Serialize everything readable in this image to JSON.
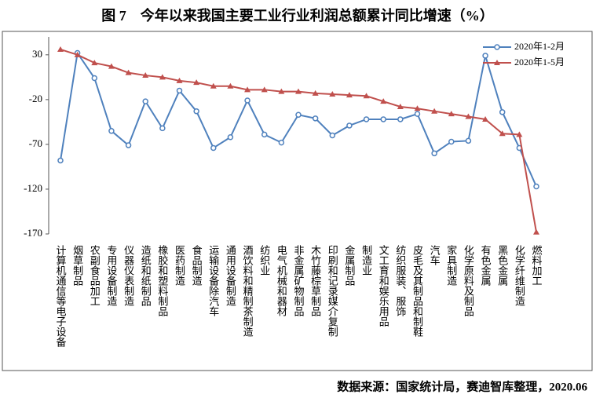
{
  "chart_data": {
    "type": "line",
    "title": "图 7　今年以来我国主要工业行业利润总额累计同比增速（%）",
    "source": "数据来源：国家统计局，赛迪智库整理，2020.06",
    "categories": [
      "计算机通信等电子设备",
      "烟草制品",
      "农副食品加工",
      "专用设备制造",
      "仪器仪表制造",
      "造纸和纸制品",
      "橡胶和塑料制品",
      "医药制造",
      "食品制造",
      "运输设备除汽车",
      "通用设备制造",
      "酒饮料和精制茶制造",
      "纺织业",
      "电气机械和器材",
      "非金属矿物制品",
      "木竹藤棕草制品",
      "印刷和记录媒介复制",
      "金属制品",
      "制造业",
      "文工育和娱乐用品",
      "纺织服装、服饰",
      "皮毛及其制品和制鞋",
      "汽车",
      "家具制造",
      "化学原料及制品",
      "有色金属",
      "黑色金属",
      "化学纤维制造",
      "燃料加工"
    ],
    "series": [
      {
        "name": "2020年1-2月",
        "color": "#4f81bd",
        "marker": "circle",
        "values": [
          -88,
          32,
          4,
          -55,
          -71,
          -22,
          -52,
          -10,
          -33,
          -74,
          -62,
          -21,
          -59,
          -68,
          -37,
          -41,
          -60,
          -49,
          -42,
          -42,
          -42,
          -36,
          -80,
          -67,
          -66,
          29,
          -34,
          -74,
          -117
        ]
      },
      {
        "name": "2020年1-5月",
        "color": "#c0504d",
        "marker": "triangle",
        "values": [
          36,
          30,
          21,
          17,
          10,
          7,
          5,
          1,
          -1,
          -5,
          -5,
          -9,
          -9,
          -11,
          -11,
          -13,
          -14,
          -15,
          -16,
          -22,
          -28,
          -30,
          -33,
          -36,
          -39,
          -42,
          -58,
          -59,
          -168
        ]
      }
    ],
    "ylim": [
      -170,
      50
    ],
    "yticks": [
      30,
      -20,
      -70,
      -120,
      -170
    ],
    "grid": false,
    "legend": "top-right"
  }
}
